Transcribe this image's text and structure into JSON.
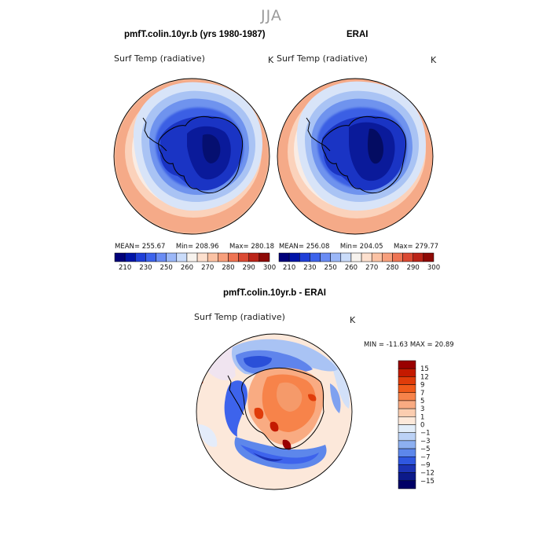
{
  "season": "JJA",
  "top_panels": [
    {
      "title": "pmfT.colin.10yr.b (yrs 1980-1987)",
      "variable": "Surf Temp (radiative)",
      "units": "K",
      "mean_label": "MEAN=",
      "mean": "255.67",
      "min_label": "Min=",
      "min": "208.96",
      "max_label": "Max=",
      "max": "280.18"
    },
    {
      "title": "ERAI",
      "variable": "Surf Temp (radiative)",
      "units": "K",
      "mean_label": "MEAN=",
      "mean": "256.08",
      "min_label": "Min=",
      "min": "204.05",
      "max_label": "Max=",
      "max": "279.77"
    }
  ],
  "top_colorbar": {
    "colors": [
      "#00007a",
      "#0014a8",
      "#1f3fd8",
      "#3d63ec",
      "#6a8cf4",
      "#9bb7f8",
      "#cadcfa",
      "#f7f3ee",
      "#fde0ce",
      "#fbc2a4",
      "#f79f7c",
      "#ee7453",
      "#db4a33",
      "#bb2418",
      "#8e0a06"
    ],
    "tick_labels": [
      "210",
      "230",
      "250",
      "260",
      "270",
      "280",
      "290",
      "300"
    ]
  },
  "diff_panel": {
    "title": "pmfT.colin.10yr.b - ERAI",
    "variable": "Surf Temp (radiative)",
    "units": "K",
    "min_label": "MIN =",
    "min": "-11.63",
    "max_label": "MAX =",
    "max": "20.89"
  },
  "diff_colorbar": {
    "colors": [
      "#990000",
      "#c41a00",
      "#e03c0a",
      "#f05a1a",
      "#f7834a",
      "#f9ab82",
      "#fbcdb0",
      "#fde9da",
      "#e2edf9",
      "#bcd2f6",
      "#8db0f1",
      "#5d87eb",
      "#2f57e0",
      "#1c33b4",
      "#0c1a8a",
      "#000066"
    ],
    "tick_labels": [
      "15",
      "12",
      "9",
      "7",
      "5",
      "3",
      "1",
      "0",
      "−1",
      "−3",
      "−5",
      "−7",
      "−9",
      "−12",
      "−15"
    ]
  }
}
